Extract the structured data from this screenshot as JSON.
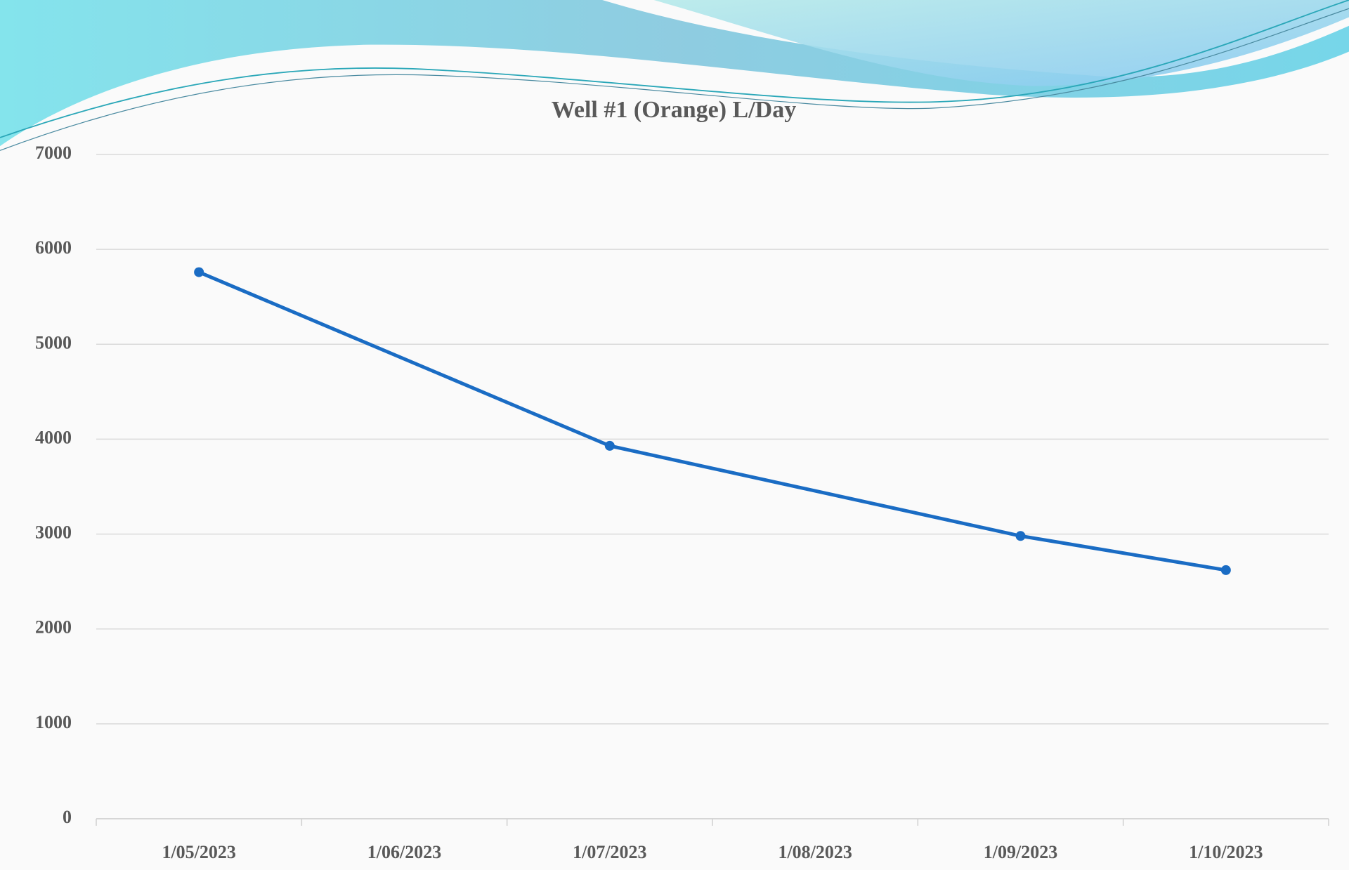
{
  "chart_data": {
    "type": "line",
    "title": "Well #1 (Orange) L/Day",
    "categories": [
      "1/05/2023",
      "1/06/2023",
      "1/07/2023",
      "1/08/2023",
      "1/09/2023",
      "1/10/2023"
    ],
    "series": [
      {
        "x": [
          "1/05/2023",
          "1/07/2023",
          "1/09/2023",
          "1/10/2023"
        ],
        "values": [
          5760,
          3930,
          2980,
          2620
        ],
        "color": "#1a6cc4"
      }
    ],
    "ylim": [
      0,
      7000
    ],
    "yticks": [
      0,
      1000,
      2000,
      3000,
      4000,
      5000,
      6000,
      7000
    ],
    "grid": true
  }
}
